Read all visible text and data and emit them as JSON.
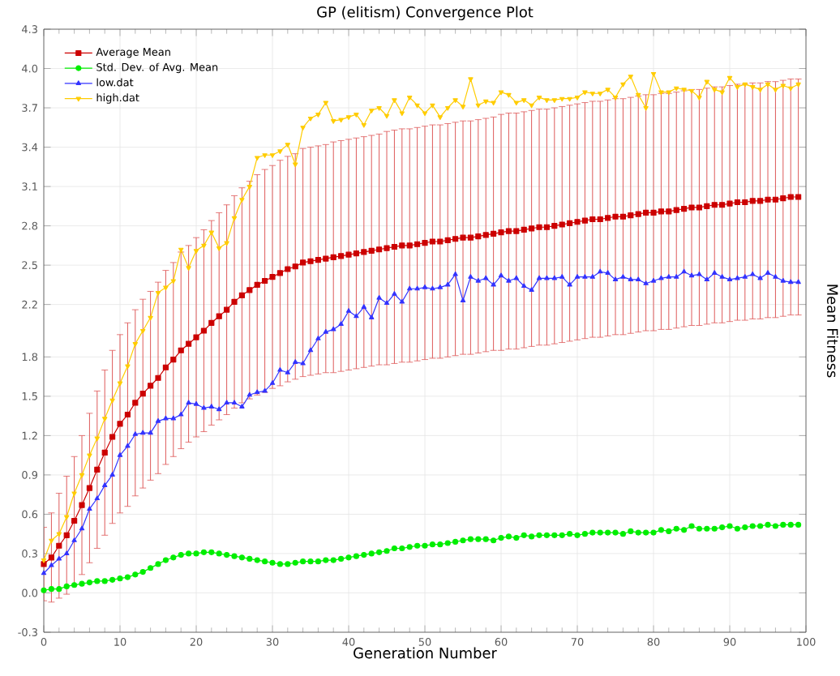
{
  "chart_data": {
    "type": "line",
    "title": "GP (elitism) Convergence Plot",
    "xlabel": "Generation Number",
    "ylabel": "Mean Fitness",
    "x": [
      0,
      1,
      2,
      3,
      4,
      5,
      6,
      7,
      8,
      9,
      10,
      11,
      12,
      13,
      14,
      15,
      16,
      17,
      18,
      19,
      20,
      21,
      22,
      23,
      24,
      25,
      26,
      27,
      28,
      29,
      30,
      31,
      32,
      33,
      34,
      35,
      36,
      37,
      38,
      39,
      40,
      41,
      42,
      43,
      44,
      45,
      46,
      47,
      48,
      49,
      50,
      51,
      52,
      53,
      54,
      55,
      56,
      57,
      58,
      59,
      60,
      61,
      62,
      63,
      64,
      65,
      66,
      67,
      68,
      69,
      70,
      71,
      72,
      73,
      74,
      75,
      76,
      77,
      78,
      79,
      80,
      81,
      82,
      83,
      84,
      85,
      86,
      87,
      88,
      89,
      90,
      91,
      92,
      93,
      94,
      95,
      96,
      97,
      98,
      99
    ],
    "series": [
      {
        "name": "Average Mean",
        "color": "#cc0000",
        "marker": "square",
        "values": [
          0.22,
          0.27,
          0.36,
          0.44,
          0.55,
          0.67,
          0.8,
          0.94,
          1.07,
          1.19,
          1.29,
          1.36,
          1.45,
          1.52,
          1.58,
          1.64,
          1.72,
          1.78,
          1.85,
          1.9,
          1.95,
          2.0,
          2.06,
          2.11,
          2.16,
          2.22,
          2.27,
          2.31,
          2.35,
          2.38,
          2.41,
          2.44,
          2.47,
          2.49,
          2.52,
          2.53,
          2.54,
          2.55,
          2.56,
          2.57,
          2.58,
          2.59,
          2.6,
          2.61,
          2.62,
          2.63,
          2.64,
          2.65,
          2.65,
          2.66,
          2.67,
          2.68,
          2.68,
          2.69,
          2.7,
          2.71,
          2.71,
          2.72,
          2.73,
          2.74,
          2.75,
          2.76,
          2.76,
          2.77,
          2.78,
          2.79,
          2.79,
          2.8,
          2.81,
          2.82,
          2.83,
          2.84,
          2.85,
          2.85,
          2.86,
          2.87,
          2.87,
          2.88,
          2.89,
          2.9,
          2.9,
          2.91,
          2.91,
          2.92,
          2.93,
          2.94,
          2.94,
          2.95,
          2.96,
          2.96,
          2.97,
          2.98,
          2.98,
          2.99,
          2.99,
          3.0,
          3.0,
          3.01,
          3.02,
          3.02
        ],
        "errors": [
          0.28,
          0.34,
          0.4,
          0.45,
          0.49,
          0.53,
          0.57,
          0.6,
          0.63,
          0.66,
          0.68,
          0.7,
          0.71,
          0.72,
          0.72,
          0.73,
          0.74,
          0.74,
          0.75,
          0.75,
          0.76,
          0.77,
          0.78,
          0.79,
          0.8,
          0.81,
          0.82,
          0.83,
          0.84,
          0.85,
          0.85,
          0.86,
          0.86,
          0.86,
          0.87,
          0.87,
          0.87,
          0.87,
          0.88,
          0.88,
          0.88,
          0.88,
          0.88,
          0.88,
          0.88,
          0.89,
          0.89,
          0.89,
          0.89,
          0.89,
          0.89,
          0.89,
          0.89,
          0.89,
          0.89,
          0.89,
          0.89,
          0.89,
          0.89,
          0.89,
          0.9,
          0.9,
          0.9,
          0.9,
          0.9,
          0.9,
          0.9,
          0.9,
          0.9,
          0.9,
          0.9,
          0.9,
          0.9,
          0.9,
          0.9,
          0.9,
          0.9,
          0.9,
          0.9,
          0.9,
          0.9,
          0.9,
          0.9,
          0.9,
          0.9,
          0.9,
          0.9,
          0.9,
          0.9,
          0.9,
          0.9,
          0.9,
          0.9,
          0.9,
          0.9,
          0.9,
          0.9,
          0.9,
          0.9,
          0.9
        ]
      },
      {
        "name": "Std. Dev. of Avg. Mean",
        "color": "#00ee00",
        "marker": "circle",
        "values": [
          0.02,
          0.03,
          0.03,
          0.05,
          0.06,
          0.07,
          0.08,
          0.09,
          0.09,
          0.1,
          0.11,
          0.12,
          0.14,
          0.16,
          0.19,
          0.22,
          0.25,
          0.27,
          0.29,
          0.3,
          0.3,
          0.31,
          0.31,
          0.3,
          0.29,
          0.28,
          0.27,
          0.26,
          0.25,
          0.24,
          0.23,
          0.22,
          0.22,
          0.23,
          0.24,
          0.24,
          0.24,
          0.25,
          0.25,
          0.26,
          0.27,
          0.28,
          0.29,
          0.3,
          0.31,
          0.32,
          0.34,
          0.34,
          0.35,
          0.36,
          0.36,
          0.37,
          0.37,
          0.38,
          0.39,
          0.4,
          0.41,
          0.41,
          0.41,
          0.4,
          0.42,
          0.43,
          0.42,
          0.44,
          0.43,
          0.44,
          0.44,
          0.44,
          0.44,
          0.45,
          0.44,
          0.45,
          0.46,
          0.46,
          0.46,
          0.46,
          0.45,
          0.47,
          0.46,
          0.46,
          0.46,
          0.48,
          0.47,
          0.49,
          0.48,
          0.51,
          0.49,
          0.49,
          0.49,
          0.5,
          0.51,
          0.49,
          0.5,
          0.51,
          0.51,
          0.52,
          0.51,
          0.52,
          0.52,
          0.52
        ]
      },
      {
        "name": "low.dat",
        "color": "#3333ff",
        "marker": "triangle",
        "values": [
          0.15,
          0.21,
          0.26,
          0.3,
          0.4,
          0.49,
          0.64,
          0.72,
          0.82,
          0.9,
          1.05,
          1.12,
          1.21,
          1.22,
          1.22,
          1.31,
          1.33,
          1.33,
          1.36,
          1.45,
          1.44,
          1.41,
          1.42,
          1.4,
          1.45,
          1.45,
          1.42,
          1.51,
          1.53,
          1.54,
          1.6,
          1.7,
          1.68,
          1.76,
          1.75,
          1.85,
          1.94,
          1.99,
          2.01,
          2.05,
          2.15,
          2.11,
          2.18,
          2.1,
          2.25,
          2.21,
          2.28,
          2.22,
          2.32,
          2.32,
          2.33,
          2.32,
          2.33,
          2.35,
          2.43,
          2.23,
          2.41,
          2.38,
          2.4,
          2.35,
          2.42,
          2.38,
          2.4,
          2.34,
          2.31,
          2.4,
          2.4,
          2.4,
          2.41,
          2.35,
          2.41,
          2.41,
          2.41,
          2.45,
          2.44,
          2.39,
          2.41,
          2.39,
          2.39,
          2.36,
          2.38,
          2.4,
          2.41,
          2.41,
          2.45,
          2.42,
          2.43,
          2.39,
          2.44,
          2.41,
          2.39,
          2.4,
          2.41,
          2.43,
          2.4,
          2.44,
          2.41,
          2.38,
          2.37,
          2.37
        ]
      },
      {
        "name": "high.dat",
        "color": "#ffcc00",
        "marker": "triangle-down",
        "values": [
          0.25,
          0.4,
          0.45,
          0.58,
          0.76,
          0.9,
          1.05,
          1.18,
          1.33,
          1.47,
          1.6,
          1.73,
          1.9,
          2.0,
          2.1,
          2.29,
          2.33,
          2.38,
          2.62,
          2.48,
          2.61,
          2.65,
          2.75,
          2.63,
          2.67,
          2.86,
          3.0,
          3.1,
          3.32,
          3.34,
          3.34,
          3.37,
          3.42,
          3.27,
          3.55,
          3.62,
          3.65,
          3.74,
          3.6,
          3.61,
          3.63,
          3.65,
          3.57,
          3.68,
          3.7,
          3.64,
          3.76,
          3.66,
          3.78,
          3.72,
          3.66,
          3.72,
          3.63,
          3.7,
          3.76,
          3.71,
          3.92,
          3.72,
          3.75,
          3.74,
          3.82,
          3.8,
          3.74,
          3.76,
          3.72,
          3.78,
          3.76,
          3.76,
          3.77,
          3.77,
          3.78,
          3.82,
          3.81,
          3.81,
          3.84,
          3.78,
          3.88,
          3.94,
          3.8,
          3.7,
          3.96,
          3.82,
          3.82,
          3.85,
          3.84,
          3.83,
          3.78,
          3.9,
          3.84,
          3.82,
          3.93,
          3.86,
          3.88,
          3.86,
          3.84,
          3.88,
          3.84,
          3.87,
          3.85,
          3.88
        ]
      }
    ],
    "xlim": [
      0,
      100
    ],
    "xticks": [
      0,
      10,
      20,
      30,
      40,
      50,
      60,
      70,
      80,
      90,
      100
    ],
    "ylim": [
      -0.3,
      4.3
    ],
    "yticks": [
      -0.3,
      {
        "value": 0,
        "label": "0.0"
      },
      0.3,
      0.6,
      0.9,
      1.2,
      1.5,
      1.8,
      2.2,
      2.5,
      2.8,
      3.1,
      3.4,
      3.7,
      {
        "value": 4,
        "label": "4.0"
      },
      4.3
    ],
    "grid": true,
    "legend": "top left",
    "line_style": "solid"
  }
}
